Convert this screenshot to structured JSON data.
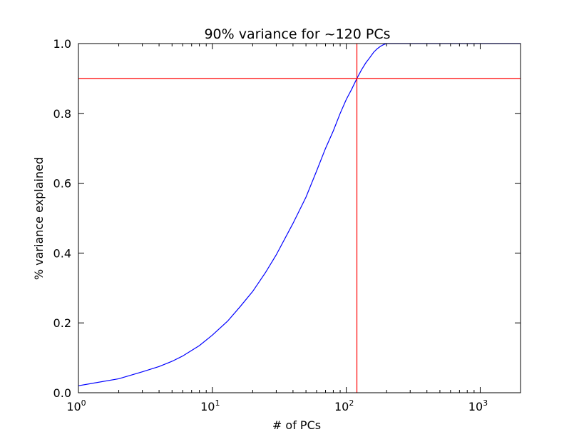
{
  "chart_data": {
    "type": "line",
    "title": "90% variance for ~120 PCs",
    "xlabel": "# of PCs",
    "ylabel": "% variance explained",
    "xscale": "log",
    "xlim": [
      1,
      2000
    ],
    "ylim": [
      0.0,
      1.0
    ],
    "grid": false,
    "xticks": [
      {
        "value": 1,
        "base": "10",
        "exp": "0"
      },
      {
        "value": 10,
        "base": "10",
        "exp": "1"
      },
      {
        "value": 100,
        "base": "10",
        "exp": "2"
      },
      {
        "value": 1000,
        "base": "10",
        "exp": "3"
      }
    ],
    "yticks": [
      {
        "value": 0.0,
        "label": "0.0"
      },
      {
        "value": 0.2,
        "label": "0.2"
      },
      {
        "value": 0.4,
        "label": "0.4"
      },
      {
        "value": 0.6,
        "label": "0.6"
      },
      {
        "value": 0.8,
        "label": "0.8"
      },
      {
        "value": 1.0,
        "label": "1.0"
      }
    ],
    "series": [
      {
        "color": "#0000ff",
        "x": [
          1,
          2,
          3,
          4,
          5,
          6,
          8,
          10,
          13,
          16,
          20,
          25,
          30,
          40,
          50,
          60,
          70,
          80,
          90,
          100,
          110,
          120,
          130,
          140,
          150,
          160,
          170,
          180,
          190,
          200,
          300,
          500,
          1000,
          2000
        ],
        "y": [
          0.02,
          0.04,
          0.06,
          0.075,
          0.09,
          0.105,
          0.135,
          0.165,
          0.205,
          0.245,
          0.29,
          0.345,
          0.395,
          0.485,
          0.56,
          0.635,
          0.7,
          0.75,
          0.8,
          0.84,
          0.87,
          0.9,
          0.925,
          0.945,
          0.96,
          0.975,
          0.985,
          0.992,
          0.997,
          1.0,
          1.0,
          1.0,
          1.0,
          1.0
        ]
      }
    ],
    "reference_lines": [
      {
        "orientation": "horizontal",
        "value": 0.9,
        "color": "#ff0000"
      },
      {
        "orientation": "vertical",
        "value": 120,
        "color": "#ff0000"
      }
    ]
  }
}
